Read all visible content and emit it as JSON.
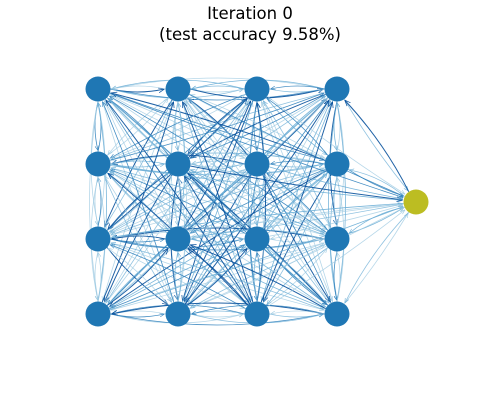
{
  "title": {
    "line1": "Iteration 0",
    "line2": "(test accuracy 9.58%)"
  },
  "colors": {
    "node": "#1f77b4",
    "output_node": "#bcbd22",
    "edge_dark": "#08519c",
    "edge_mid": "#3182bd",
    "edge_light": "#6baed6",
    "edge_pale": "#9ecae1",
    "background": "#ffffff"
  },
  "network": {
    "input_grid": {
      "rows": 4,
      "cols": 4
    },
    "output_nodes": 1,
    "connectivity": "fully connected, directed, with arrowheads"
  }
}
